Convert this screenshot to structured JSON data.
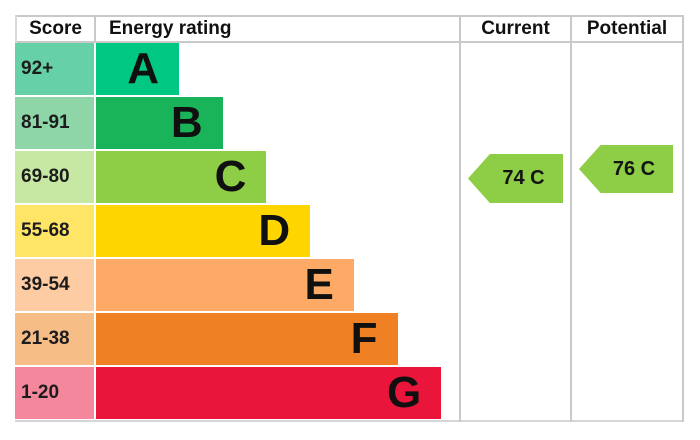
{
  "header": {
    "score": "Score",
    "energy_rating": "Energy rating",
    "current": "Current",
    "potential": "Potential"
  },
  "chart_data": {
    "type": "bar",
    "orientation": "horizontal",
    "title": "EPC energy efficiency rating chart",
    "bands": [
      {
        "letter": "A",
        "score_range": "92+",
        "color": "#00c781",
        "score_cell_color": "#66d1a6"
      },
      {
        "letter": "B",
        "score_range": "81-91",
        "color": "#19b459",
        "score_cell_color": "#8ed6a8"
      },
      {
        "letter": "C",
        "score_range": "69-80",
        "color": "#8dce46",
        "score_cell_color": "#c6e8a3"
      },
      {
        "letter": "D",
        "score_range": "55-68",
        "color": "#ffd500",
        "score_cell_color": "#ffe566"
      },
      {
        "letter": "E",
        "score_range": "39-54",
        "color": "#fcaa65",
        "score_cell_color": "#fdcca3"
      },
      {
        "letter": "F",
        "score_range": "21-38",
        "color": "#ef8023",
        "score_cell_color": "#f7bd87"
      },
      {
        "letter": "G",
        "score_range": "1-20",
        "color": "#e9153b",
        "score_cell_color": "#f5879c"
      }
    ],
    "current": {
      "value": 74,
      "band": "C",
      "label": "74 C",
      "arrow_color": "#8dce46"
    },
    "potential": {
      "value": 76,
      "band": "C",
      "label": "76 C",
      "arrow_color": "#8dce46"
    },
    "border_color": "#c9c9c9"
  }
}
